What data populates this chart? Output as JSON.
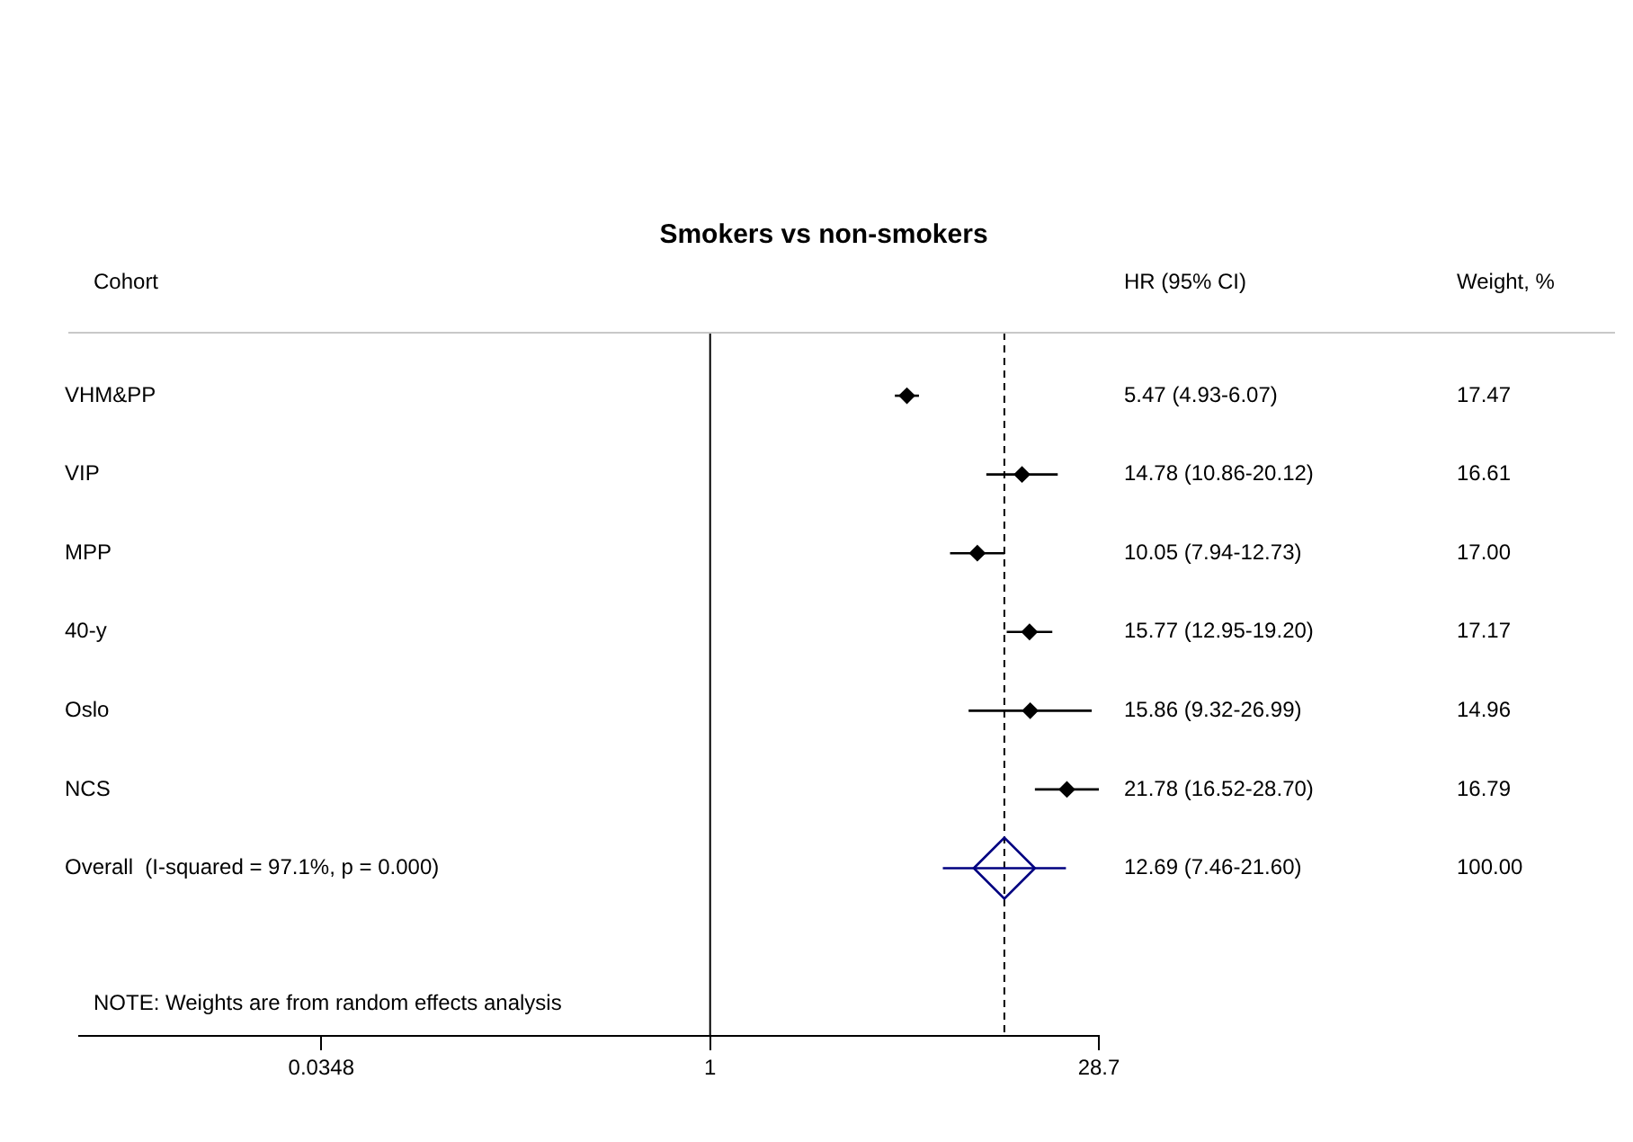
{
  "chart_data": {
    "type": "scatter",
    "orientation": "horizontal",
    "title": "Smokers vs non-smokers",
    "ylabel": "Cohort",
    "categories": [
      "VHM&PP",
      "VIP",
      "MPP",
      "40-y",
      "Oslo",
      "NCS",
      "Overall  (I-squared = 97.1%, p = 0.000)"
    ],
    "series": [
      {
        "color": "#000000",
        "marker": "diamond",
        "values": [
          5.47,
          14.78,
          10.05,
          15.77,
          15.86,
          21.78,
          null
        ],
        "errors": [
          [
            4.93,
            6.07
          ],
          [
            10.86,
            20.12
          ],
          [
            7.94,
            12.73
          ],
          [
            12.95,
            19.2
          ],
          [
            9.32,
            26.99
          ],
          [
            16.52,
            28.7
          ],
          null
        ]
      },
      {
        "color": "#000080",
        "marker": "diamond",
        "values": [
          null,
          null,
          null,
          null,
          null,
          null,
          12.69
        ],
        "errors": [
          null,
          null,
          null,
          null,
          null,
          null,
          [
            7.46,
            21.6
          ]
        ]
      }
    ],
    "log": "x",
    "xlim": [
      0.0043,
      28.7
    ],
    "xticks": [
      0.0348,
      1,
      28.7
    ],
    "grid": false,
    "legend": false,
    "ref_lines": [
      {
        "axis": "x",
        "value": 1,
        "line_style": "solid",
        "color": "#000000"
      },
      {
        "axis": "x",
        "value": 12.69,
        "line_style": "dashed",
        "color": "#000000"
      }
    ],
    "annotations": [
      "HR (95% CI)",
      "Weight, %",
      "NOTE: Weights are from random effects analysis",
      "5.47 (4.93-6.07)",
      "14.78 (10.86-20.12)",
      "10.05 (7.94-12.73)",
      "15.77 (12.95-19.20)",
      "15.86 (9.32-26.99)",
      "21.78 (16.52-28.70)",
      "12.69 (7.46-21.60)",
      "17.47",
      "16.61",
      "17.00",
      "17.17",
      "14.96",
      "16.79",
      "100.00"
    ]
  }
}
